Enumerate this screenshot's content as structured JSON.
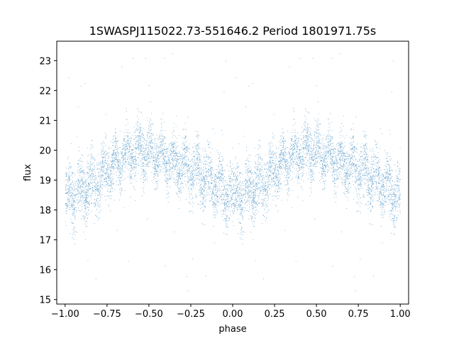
{
  "chart_data": {
    "type": "scatter",
    "title": "1SWASPJ115022.73-551646.2 Period 1801971.75s",
    "xlabel": "phase",
    "ylabel": "flux",
    "xlim": [
      -1.05,
      1.05
    ],
    "ylim": [
      14.85,
      23.65
    ],
    "xticks": [
      -1.0,
      -0.75,
      -0.5,
      -0.25,
      0.0,
      0.25,
      0.5,
      0.75,
      1.0
    ],
    "xtick_labels": [
      "−1.00",
      "−0.75",
      "−0.50",
      "−0.25",
      "0.00",
      "0.25",
      "0.50",
      "0.75",
      "1.00"
    ],
    "yticks": [
      15,
      16,
      17,
      18,
      19,
      20,
      21,
      22,
      23
    ],
    "ytick_labels": [
      "15",
      "16",
      "17",
      "18",
      "19",
      "20",
      "21",
      "22",
      "23"
    ],
    "grid": false,
    "marker_color": "#1f77b4",
    "phase_range": [
      -1.0,
      1.0
    ],
    "folded_profile": {
      "phase": [
        0.0,
        0.1,
        0.2,
        0.3,
        0.4,
        0.45,
        0.5,
        0.6,
        0.7,
        0.8,
        0.9,
        1.0
      ],
      "flux_median": [
        18.4,
        18.7,
        19.0,
        19.6,
        19.9,
        20.0,
        19.9,
        19.7,
        19.5,
        19.2,
        18.9,
        18.4
      ],
      "flux_scatter": [
        0.6,
        0.6,
        0.6,
        0.5,
        0.55,
        0.6,
        0.55,
        0.5,
        0.55,
        0.6,
        0.6,
        0.6
      ]
    },
    "outlier_flux_range": [
      15.2,
      23.3
    ],
    "n_points_approx": 9000
  }
}
